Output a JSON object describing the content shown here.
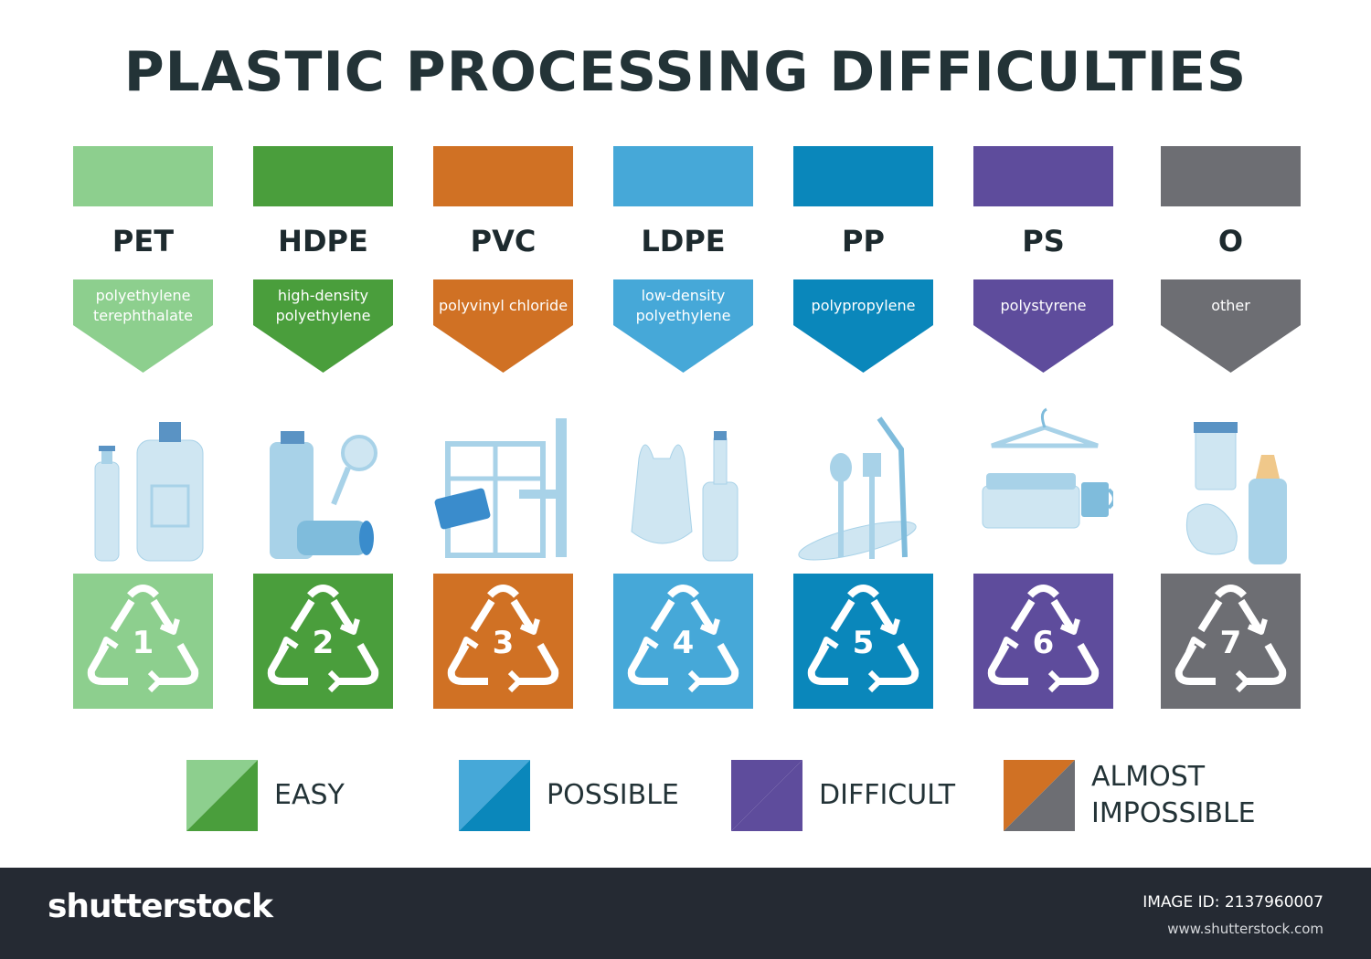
{
  "title": "PLASTIC PROCESSING DIFFICULTIES",
  "plastics": [
    {
      "code": "PET",
      "name": "polyethylene terephthalate",
      "number": "1",
      "color": "#8dcf8e",
      "icons": [
        "water-bottle-icon",
        "water-jug-icon"
      ]
    },
    {
      "code": "HDPE",
      "name": "high-density polyethylene",
      "number": "2",
      "color": "#4a9e3c",
      "icons": [
        "shampoo-bottle-icon",
        "baby-rattle-icon",
        "pipe-tube-icon"
      ]
    },
    {
      "code": "PVC",
      "name": "polyvinyl chloride",
      "number": "3",
      "color": "#d07124",
      "icons": [
        "window-frame-icon",
        "credit-card-icon",
        "pipe-icon"
      ]
    },
    {
      "code": "LDPE",
      "name": "low-density polyethylene",
      "number": "4",
      "color": "#46a8d8",
      "icons": [
        "plastic-bag-icon",
        "bottle-icon"
      ]
    },
    {
      "code": "PP",
      "name": "polypropylene",
      "number": "5",
      "color": "#0a87bb",
      "icons": [
        "plate-icon",
        "spoon-icon",
        "fork-icon",
        "straw-icon"
      ]
    },
    {
      "code": "PS",
      "name": "polystyrene",
      "number": "6",
      "color": "#5e4c9c",
      "icons": [
        "hanger-icon",
        "egg-carton-icon",
        "cup-icon"
      ]
    },
    {
      "code": "O",
      "name": "other",
      "number": "7",
      "color": "#6d6e73",
      "icons": [
        "pill-jar-icon",
        "baby-bottle-icon",
        "wrapper-icon"
      ]
    }
  ],
  "legend": [
    {
      "label": "EASY",
      "colors": [
        "#8dcf8e",
        "#4a9e3c"
      ]
    },
    {
      "label": "POSSIBLE",
      "colors": [
        "#46a8d8",
        "#0a87bb"
      ]
    },
    {
      "label": "DIFFICULT",
      "colors": [
        "#5e4c9c",
        "#5e4c9c"
      ]
    },
    {
      "label": "ALMOST\nIMPOSSIBLE",
      "colors": [
        "#d07124",
        "#6d6e73"
      ]
    }
  ],
  "footer": {
    "brand": "shutterstock",
    "image_id": "IMAGE ID: 2137960007",
    "site": "www.shutterstock.com"
  }
}
